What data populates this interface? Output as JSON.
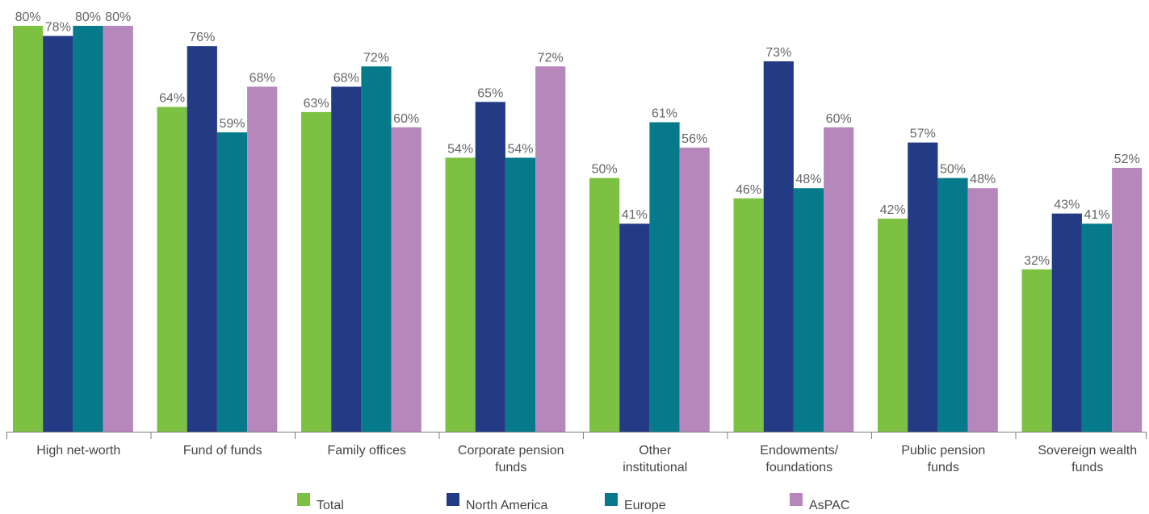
{
  "chart_data": {
    "type": "bar",
    "categories": [
      [
        "High net-worth"
      ],
      [
        "Fund of funds"
      ],
      [
        "Family offices"
      ],
      [
        "Corporate pension",
        "funds"
      ],
      [
        "Other",
        "institutional"
      ],
      [
        "Endowments/",
        "foundations"
      ],
      [
        "Public pension",
        "funds"
      ],
      [
        "Sovereign wealth",
        "funds"
      ]
    ],
    "series": [
      {
        "name": "Total",
        "color": "#7dc142",
        "values": [
          80,
          64,
          63,
          54,
          50,
          46,
          42,
          32
        ]
      },
      {
        "name": "North America",
        "color": "#233a85",
        "values": [
          78,
          76,
          68,
          65,
          41,
          73,
          57,
          43
        ]
      },
      {
        "name": "Europe",
        "color": "#06798a",
        "values": [
          80,
          59,
          72,
          54,
          61,
          48,
          50,
          41
        ]
      },
      {
        "name": "AsPAC",
        "color": "#b587bb",
        "values": [
          80,
          68,
          60,
          72,
          56,
          60,
          48,
          52
        ]
      }
    ],
    "value_suffix": "%",
    "ylim": [
      0,
      80
    ],
    "grid": false,
    "legend_position": "bottom-center"
  }
}
